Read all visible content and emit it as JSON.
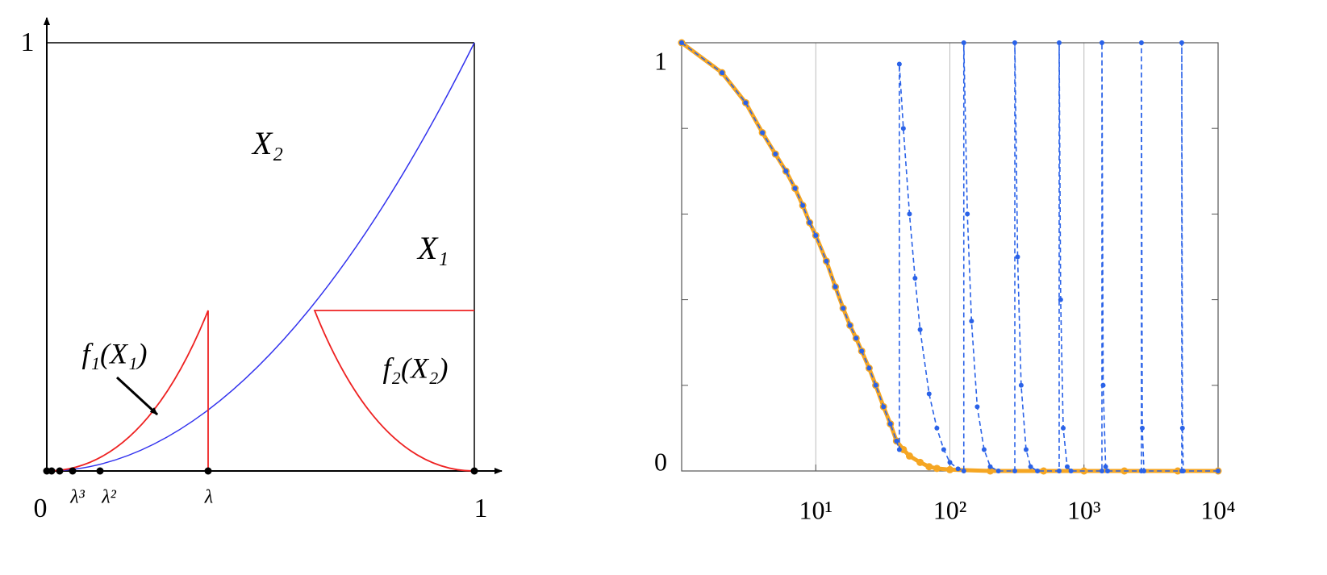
{
  "diagram": {
    "y_axis_label": "1",
    "origin_label": "0",
    "x_axis_end_label": "1",
    "x_tick_labels": [
      "λ³",
      "λ²",
      "λ"
    ],
    "region_labels": [
      "X₂",
      "X₁"
    ],
    "function_labels": [
      "f₁(X₁)",
      "f₂(X₂)"
    ]
  },
  "chart_data": {
    "type": "line",
    "xscale": "log",
    "xlim": [
      1,
      10000
    ],
    "ylim": [
      0,
      1
    ],
    "xticks": [
      {
        "value": 10,
        "label": "10¹"
      },
      {
        "value": 100,
        "label": "10²"
      },
      {
        "value": 1000,
        "label": "10³"
      },
      {
        "value": 10000,
        "label": "10⁴"
      }
    ],
    "yticks": [
      0,
      1
    ],
    "yminor_ticks": [
      0.2,
      0.4,
      0.6,
      0.8
    ],
    "grid_x": true,
    "series": [
      {
        "color": "#f5a623",
        "line_style": "solid",
        "markers": true,
        "x": [
          1,
          2,
          3,
          4,
          5,
          6,
          7,
          8,
          9,
          10,
          12,
          14,
          16,
          18,
          20,
          22,
          25,
          28,
          32,
          36,
          40,
          45,
          50,
          60,
          70,
          80,
          100,
          200,
          500,
          1000,
          2000,
          5000,
          10000
        ],
        "values": [
          1,
          0.93,
          0.86,
          0.79,
          0.74,
          0.7,
          0.66,
          0.62,
          0.58,
          0.55,
          0.49,
          0.43,
          0.38,
          0.34,
          0.31,
          0.28,
          0.24,
          0.2,
          0.15,
          0.11,
          0.07,
          0.05,
          0.035,
          0.02,
          0.01,
          0.006,
          0.003,
          0,
          0,
          0,
          0,
          0,
          0
        ]
      },
      {
        "color": "#2a62e8",
        "line_style": "dashed",
        "markers": true,
        "x": [
          1,
          2,
          3,
          4,
          5,
          6,
          7,
          8,
          9,
          10,
          12,
          14,
          16,
          18,
          20,
          22,
          25,
          28,
          32,
          36,
          40,
          42,
          42,
          45,
          50,
          55,
          60,
          70,
          80,
          90,
          100,
          115,
          127,
          127,
          135,
          145,
          160,
          180,
          200,
          230,
          305,
          305,
          320,
          340,
          370,
          400,
          450,
          653,
          653,
          670,
          700,
          750,
          800,
          1361,
          1361,
          1390,
          1450,
          1500,
          2681,
          2681,
          2720,
          2800,
          5360,
          5360,
          5420,
          5500,
          10000
        ],
        "values": [
          1,
          0.93,
          0.86,
          0.79,
          0.74,
          0.7,
          0.66,
          0.62,
          0.58,
          0.55,
          0.49,
          0.43,
          0.38,
          0.34,
          0.31,
          0.28,
          0.24,
          0.2,
          0.15,
          0.11,
          0.07,
          0.05,
          0.95,
          0.8,
          0.6,
          0.45,
          0.33,
          0.18,
          0.1,
          0.05,
          0.02,
          0.005,
          0,
          1,
          0.6,
          0.35,
          0.15,
          0.05,
          0.01,
          0,
          0,
          1,
          0.5,
          0.2,
          0.05,
          0.01,
          0,
          0,
          1,
          0.4,
          0.1,
          0.01,
          0,
          0,
          1,
          0.2,
          0.01,
          0,
          0,
          1,
          0.1,
          0,
          0,
          1,
          0.1,
          0,
          0
        ]
      }
    ]
  }
}
